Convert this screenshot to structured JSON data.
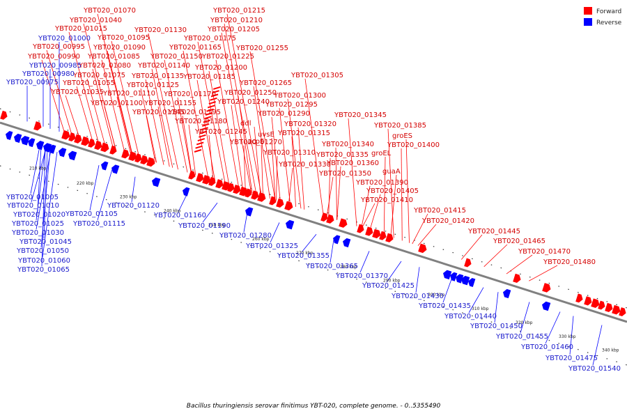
{
  "caption": "Bacillus thuringiensis serovar finitimus YBT-020, complete genome. - 0..5355490",
  "legend": [
    {
      "label": "Forward",
      "color": "#ff0000"
    },
    {
      "label": "Reverse",
      "color": "#0000ff"
    }
  ],
  "colors": {
    "forward": "#ff0000",
    "reverse": "#0000ff",
    "backbone": "#808080"
  },
  "ticks": [
    "210 kbp",
    "220 kbp",
    "230 kbp",
    "240 kbp",
    "250 kbp",
    "260 kbp",
    "270 kbp",
    "280 kbp",
    "290 kbp",
    "300 kbp",
    "310 kbp",
    "320 kbp",
    "330 kbp",
    "340 kbp"
  ],
  "forward_labels": [
    "YBT020_01070",
    "YBT020_01040",
    "YBT020_01015",
    "YBT020_00995",
    "YBT020_00990",
    "YBT020_01130",
    "YBT020_01095",
    "YBT020_01090",
    "YBT020_01085",
    "YBT020_01080",
    "YBT020_01075",
    "YBT020_01055",
    "YBT020_01035",
    "YBT020_01110",
    "YBT020_01100",
    "YBT020_01215",
    "YBT020_01210",
    "YBT020_01205",
    "YBT020_01175",
    "YBT020_01165",
    "YBT020_01150",
    "YBT020_01225",
    "YBT020_01140",
    "YBT020_01200",
    "YBT020_01135",
    "YBT020_01185",
    "YBT020_01125",
    "YBT020_01170",
    "YBT020_01155",
    "YBT020_01145",
    "YBT020_01180",
    "YBT020_01195",
    "YBT020_01245",
    "YBT020_01255",
    "YBT020_01265",
    "YBT020_01250",
    "YBT020_01240",
    "ddl",
    "acpS",
    "uvsE",
    "YBT020_01270",
    "YBT020_01305",
    "YBT020_01300",
    "YBT020_01295",
    "YBT020_01290",
    "YBT020_01320",
    "YBT020_01315",
    "YBT020_01310",
    "YBT020_01330",
    "YBT020_01345",
    "YBT020_01385",
    "groES",
    "YBT020_01340",
    "YBT020_01335",
    "groEL",
    "YBT020_01400",
    "YBT020_01360",
    "YBT020_01350",
    "guaA",
    "YBT020_01390",
    "YBT020_01405",
    "YBT020_01410",
    "YBT020_01415",
    "YBT020_01420",
    "YBT020_01445",
    "YBT020_01465",
    "YBT020_01470",
    "YBT020_01480"
  ],
  "reverse_labels": [
    "YBT020_01000",
    "YBT020_00985",
    "YBT020_00980",
    "YBT020_00975",
    "YBT020_01005",
    "YBT020_01010",
    "YBT020_01020",
    "YBT020_01025",
    "YBT020_01030",
    "YBT020_01045",
    "YBT020_01050",
    "YBT020_01060",
    "YBT020_01065",
    "YBT020_01105",
    "YBT020_01115",
    "YBT020_01120",
    "YBT020_01160",
    "YBT020_01190",
    "YBT020_01280",
    "YBT020_01325",
    "YBT020_01355",
    "YBT020_01365",
    "YBT020_01370",
    "YBT020_01425",
    "YBT020_01430",
    "YBT020_01435",
    "YBT020_01440",
    "YBT020_01450",
    "YBT020_01455",
    "YBT020_01460",
    "YBT020_01475",
    "YBT020_01540"
  ]
}
